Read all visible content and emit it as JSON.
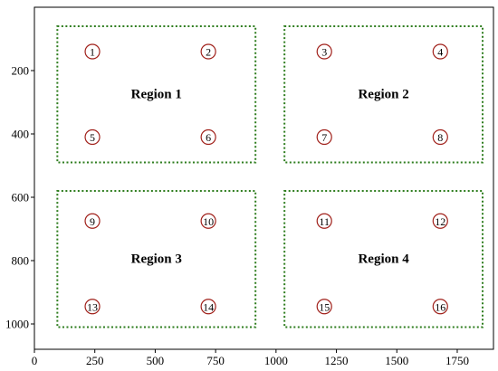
{
  "chart_data": {
    "type": "scatter",
    "title": "",
    "xlabel": "",
    "ylabel": "",
    "xlim": [
      0,
      1900
    ],
    "ylim": [
      1080,
      0
    ],
    "y_inverted": true,
    "grid": false,
    "xticks": [
      0,
      250,
      500,
      750,
      1000,
      1250,
      1500,
      1750
    ],
    "xtick_labels": [
      "0",
      "250",
      "500",
      "750",
      "1000",
      "1250",
      "1500",
      "1750"
    ],
    "yticks": [
      200,
      400,
      600,
      800,
      1000
    ],
    "ytick_labels": [
      "200",
      "400",
      "600",
      "800",
      "1000"
    ],
    "regions": [
      {
        "label": "Region 1",
        "x0": 95,
        "x1": 915,
        "y0": 60,
        "y1": 490,
        "label_x": 505,
        "label_y": 275
      },
      {
        "label": "Region 2",
        "x0": 1035,
        "x1": 1855,
        "y0": 60,
        "y1": 490,
        "label_x": 1445,
        "label_y": 275
      },
      {
        "label": "Region 3",
        "x0": 95,
        "x1": 915,
        "y0": 580,
        "y1": 1010,
        "label_x": 505,
        "label_y": 795
      },
      {
        "label": "Region 4",
        "x0": 1035,
        "x1": 1855,
        "y0": 580,
        "y1": 1010,
        "label_x": 1445,
        "label_y": 795
      }
    ],
    "region_color": "#2e7d1e",
    "marker_color": "#a0201a",
    "points": [
      {
        "label": "1",
        "x": 240,
        "y": 140
      },
      {
        "label": "2",
        "x": 720,
        "y": 140
      },
      {
        "label": "3",
        "x": 1200,
        "y": 140
      },
      {
        "label": "4",
        "x": 1680,
        "y": 140
      },
      {
        "label": "5",
        "x": 240,
        "y": 410
      },
      {
        "label": "6",
        "x": 720,
        "y": 410
      },
      {
        "label": "7",
        "x": 1200,
        "y": 410
      },
      {
        "label": "8",
        "x": 1680,
        "y": 410
      },
      {
        "label": "9",
        "x": 240,
        "y": 675
      },
      {
        "label": "10",
        "x": 720,
        "y": 675
      },
      {
        "label": "11",
        "x": 1200,
        "y": 675
      },
      {
        "label": "12",
        "x": 1680,
        "y": 675
      },
      {
        "label": "13",
        "x": 240,
        "y": 945
      },
      {
        "label": "14",
        "x": 720,
        "y": 945
      },
      {
        "label": "15",
        "x": 1200,
        "y": 945
      },
      {
        "label": "16",
        "x": 1680,
        "y": 945
      }
    ]
  }
}
